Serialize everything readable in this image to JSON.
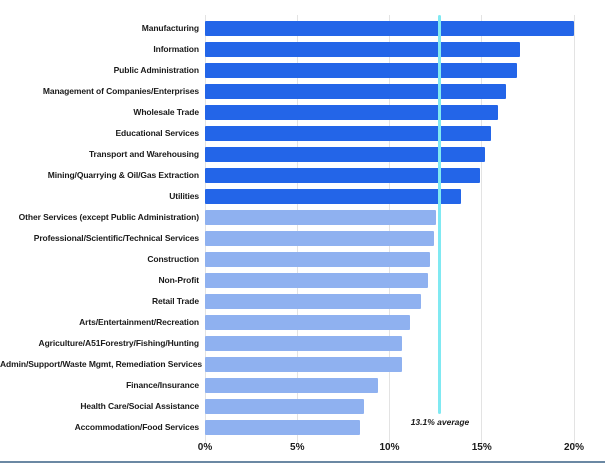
{
  "chart_data": {
    "type": "bar",
    "orientation": "horizontal",
    "title": "",
    "xlabel": "",
    "ylabel": "",
    "categories": [
      "Manufacturing",
      "Information",
      "Public Administration",
      "Management of Companies/Enterprises",
      "Wholesale Trade",
      "Educational Services",
      "Transport and Warehousing",
      "Mining/Quarrying & Oil/Gas Extraction",
      "Utilities",
      "Other Services (except Public Administration)",
      "Professional/Scientific/Technical Services",
      "Construction",
      "Non-Profit",
      "Retail Trade",
      "Arts/Entertainment/Recreation",
      "Agriculture/A51Forestry/Fishing/Hunting",
      "Admin/Support/Waste Mgmt, Remediation Services",
      "Finance/Insurance",
      "Health Care/Social Assistance",
      "Accommodation/Food Services"
    ],
    "values": [
      20.0,
      17.1,
      16.9,
      16.3,
      15.9,
      15.5,
      15.2,
      14.9,
      13.9,
      12.5,
      12.4,
      12.2,
      12.1,
      11.7,
      11.1,
      10.7,
      10.7,
      9.4,
      8.6,
      8.4
    ],
    "xlim": [
      0,
      20
    ],
    "x_ticks": [
      "0%",
      "5%",
      "10%",
      "15%",
      "20%"
    ],
    "x_tick_values": [
      0,
      5,
      10,
      15,
      20
    ],
    "grid": "vertical",
    "legend": "none",
    "average_line": {
      "label": "13.1% average",
      "value": 13.1,
      "display_position_pct": 12.7
    },
    "colors": {
      "above_average_bar": "#2365e8",
      "below_average_bar": "#8fb1f0",
      "average_line": "#80e9f2",
      "gridline": "#e3e3e3",
      "label_text": "#1a1a1a",
      "bottom_border": "#6b88a3"
    }
  }
}
